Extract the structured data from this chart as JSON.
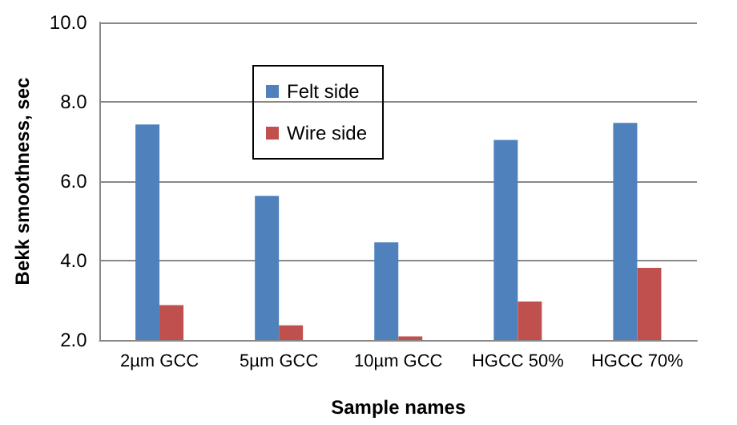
{
  "chart_data": {
    "type": "bar",
    "xlabel": "Sample names",
    "ylabel": "Bekk smoothness, sec",
    "categories": [
      "2µm GCC",
      "5µm GCC",
      "10µm GCC",
      "HGCC 50%",
      "HGCC 70%"
    ],
    "series": [
      {
        "name": "Felt side",
        "color": "#4f81bd",
        "values": [
          7.43,
          5.63,
          4.46,
          7.04,
          7.47
        ]
      },
      {
        "name": "Wire side",
        "color": "#c0504d",
        "values": [
          2.88,
          2.37,
          2.09,
          2.97,
          3.82
        ]
      }
    ],
    "ylim": [
      2,
      10
    ],
    "yticks": [
      {
        "value": 2,
        "label": "2.0"
      },
      {
        "value": 4,
        "label": "4.0"
      },
      {
        "value": 6,
        "label": "6.0"
      },
      {
        "value": 8,
        "label": "8.0"
      },
      {
        "value": 10,
        "label": "10.0"
      }
    ],
    "grid": "y",
    "legend": "top left"
  }
}
